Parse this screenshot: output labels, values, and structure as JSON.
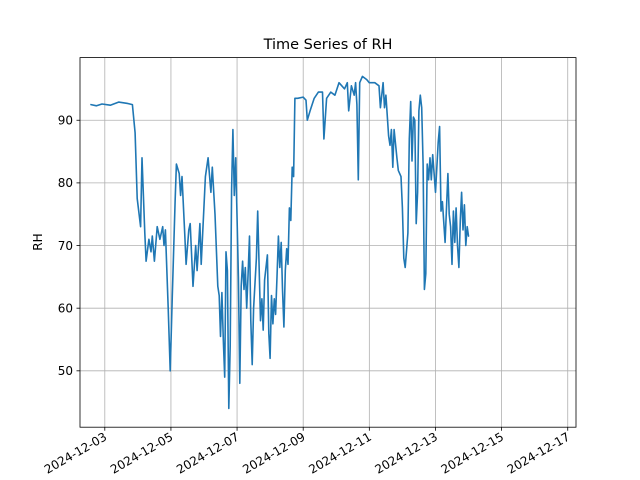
{
  "chart_data": {
    "type": "line",
    "title": "Time Series of RH",
    "xlabel": "",
    "ylabel": "RH",
    "grid": true,
    "line_color": "#1f77b4",
    "xlim": [
      "2024-12-02T06:00",
      "2024-12-17T06:00"
    ],
    "ylim": [
      41,
      100
    ],
    "x_ticks": [
      "2024-12-03",
      "2024-12-05",
      "2024-12-07",
      "2024-12-09",
      "2024-12-11",
      "2024-12-13",
      "2024-12-15",
      "2024-12-17"
    ],
    "y_ticks": [
      50,
      60,
      70,
      80,
      90
    ],
    "series": [
      {
        "name": "",
        "points": [
          [
            "2024-12-02T14:00",
            92.5
          ],
          [
            "2024-12-02T18:00",
            92.3
          ],
          [
            "2024-12-02T22:00",
            92.6
          ],
          [
            "2024-12-03T04:00",
            92.4
          ],
          [
            "2024-12-03T10:00",
            92.9
          ],
          [
            "2024-12-03T16:00",
            92.7
          ],
          [
            "2024-12-03T20:00",
            92.5
          ],
          [
            "2024-12-03T22:00",
            88.0
          ],
          [
            "2024-12-03T23:30",
            77.5
          ],
          [
            "2024-12-04T02:00",
            73.0
          ],
          [
            "2024-12-04T03:00",
            84.0
          ],
          [
            "2024-12-04T05:00",
            72.0
          ],
          [
            "2024-12-04T06:00",
            67.5
          ],
          [
            "2024-12-04T08:00",
            71.0
          ],
          [
            "2024-12-04T09:30",
            69.0
          ],
          [
            "2024-12-04T10:30",
            71.5
          ],
          [
            "2024-12-04T12:00",
            67.5
          ],
          [
            "2024-12-04T14:00",
            73.0
          ],
          [
            "2024-12-04T16:00",
            71.0
          ],
          [
            "2024-12-04T18:00",
            73.0
          ],
          [
            "2024-12-04T19:00",
            70.0
          ],
          [
            "2024-12-04T20:00",
            72.5
          ],
          [
            "2024-12-04T22:00",
            60.0
          ],
          [
            "2024-12-04T23:30",
            50.0
          ],
          [
            "2024-12-05T01:00",
            62.0
          ],
          [
            "2024-12-05T03:00",
            77.0
          ],
          [
            "2024-12-05T04:00",
            83.0
          ],
          [
            "2024-12-05T06:00",
            81.5
          ],
          [
            "2024-12-05T07:00",
            78.0
          ],
          [
            "2024-12-05T08:00",
            81.0
          ],
          [
            "2024-12-05T10:00",
            72.0
          ],
          [
            "2024-12-05T11:00",
            67.0
          ],
          [
            "2024-12-05T13:00",
            72.5
          ],
          [
            "2024-12-05T14:00",
            73.5
          ],
          [
            "2024-12-05T16:00",
            63.5
          ],
          [
            "2024-12-05T18:00",
            70.0
          ],
          [
            "2024-12-05T19:00",
            66.0
          ],
          [
            "2024-12-05T21:00",
            73.5
          ],
          [
            "2024-12-05T22:00",
            67.0
          ],
          [
            "2024-12-06T01:00",
            81.0
          ],
          [
            "2024-12-06T03:00",
            84.0
          ],
          [
            "2024-12-06T05:00",
            78.5
          ],
          [
            "2024-12-06T06:00",
            82.5
          ],
          [
            "2024-12-06T08:00",
            75.0
          ],
          [
            "2024-12-06T10:00",
            63.5
          ],
          [
            "2024-12-06T11:00",
            62.0
          ],
          [
            "2024-12-06T12:00",
            55.5
          ],
          [
            "2024-12-06T13:00",
            62.5
          ],
          [
            "2024-12-06T14:00",
            55.0
          ],
          [
            "2024-12-06T15:00",
            49.0
          ],
          [
            "2024-12-06T16:00",
            69.0
          ],
          [
            "2024-12-06T17:00",
            66.0
          ],
          [
            "2024-12-06T18:00",
            44.0
          ],
          [
            "2024-12-06T19:00",
            54.0
          ],
          [
            "2024-12-06T20:00",
            79.0
          ],
          [
            "2024-12-06T21:00",
            88.5
          ],
          [
            "2024-12-06T22:00",
            78.0
          ],
          [
            "2024-12-06T23:00",
            84.0
          ],
          [
            "2024-12-07T01:00",
            65.0
          ],
          [
            "2024-12-07T02:00",
            48.0
          ],
          [
            "2024-12-07T03:00",
            63.5
          ],
          [
            "2024-12-07T04:00",
            67.5
          ],
          [
            "2024-12-07T05:00",
            63.0
          ],
          [
            "2024-12-07T06:00",
            66.5
          ],
          [
            "2024-12-07T07:00",
            60.0
          ],
          [
            "2024-12-07T08:00",
            65.5
          ],
          [
            "2024-12-07T09:00",
            71.5
          ],
          [
            "2024-12-07T10:00",
            58.0
          ],
          [
            "2024-12-07T11:00",
            51.0
          ],
          [
            "2024-12-07T12:00",
            60.0
          ],
          [
            "2024-12-07T14:00",
            68.0
          ],
          [
            "2024-12-07T15:00",
            75.5
          ],
          [
            "2024-12-07T17:00",
            58.0
          ],
          [
            "2024-12-07T18:00",
            61.5
          ],
          [
            "2024-12-07T19:00",
            56.5
          ],
          [
            "2024-12-07T20:00",
            64.5
          ],
          [
            "2024-12-07T22:00",
            68.5
          ],
          [
            "2024-12-07T23:00",
            56.0
          ],
          [
            "2024-12-08T00:00",
            52.0
          ],
          [
            "2024-12-08T01:00",
            62.0
          ],
          [
            "2024-12-08T02:00",
            57.5
          ],
          [
            "2024-12-08T03:00",
            61.5
          ],
          [
            "2024-12-08T04:00",
            59.0
          ],
          [
            "2024-12-08T05:00",
            65.0
          ],
          [
            "2024-12-08T06:00",
            71.5
          ],
          [
            "2024-12-08T07:00",
            66.5
          ],
          [
            "2024-12-08T08:00",
            70.5
          ],
          [
            "2024-12-08T09:00",
            63.0
          ],
          [
            "2024-12-08T10:00",
            57.0
          ],
          [
            "2024-12-08T11:00",
            66.0
          ],
          [
            "2024-12-08T12:00",
            69.5
          ],
          [
            "2024-12-08T13:00",
            67.0
          ],
          [
            "2024-12-08T14:00",
            76.0
          ],
          [
            "2024-12-08T15:00",
            74.0
          ],
          [
            "2024-12-08T16:00",
            82.5
          ],
          [
            "2024-12-08T17:00",
            81.0
          ],
          [
            "2024-12-08T18:00",
            93.5
          ],
          [
            "2024-12-08T20:00",
            93.5
          ],
          [
            "2024-12-09T00:00",
            93.7
          ],
          [
            "2024-12-09T02:00",
            93.2
          ],
          [
            "2024-12-09T03:00",
            90.0
          ],
          [
            "2024-12-09T05:00",
            91.5
          ],
          [
            "2024-12-09T08:00",
            93.5
          ],
          [
            "2024-12-09T11:00",
            94.5
          ],
          [
            "2024-12-09T14:00",
            94.5
          ],
          [
            "2024-12-09T15:00",
            87.0
          ],
          [
            "2024-12-09T17:00",
            93.5
          ],
          [
            "2024-12-09T20:00",
            94.5
          ],
          [
            "2024-12-09T23:00",
            94.0
          ],
          [
            "2024-12-10T02:00",
            96.0
          ],
          [
            "2024-12-10T04:00",
            95.5
          ],
          [
            "2024-12-10T06:00",
            95.0
          ],
          [
            "2024-12-10T08:00",
            96.0
          ],
          [
            "2024-12-10T09:00",
            91.5
          ],
          [
            "2024-12-10T11:00",
            95.5
          ],
          [
            "2024-12-10T13:00",
            94.0
          ],
          [
            "2024-12-10T14:00",
            96.0
          ],
          [
            "2024-12-10T15:00",
            92.5
          ],
          [
            "2024-12-10T16:00",
            80.5
          ],
          [
            "2024-12-10T17:00",
            96.0
          ],
          [
            "2024-12-10T19:00",
            97.0
          ],
          [
            "2024-12-10T22:00",
            96.5
          ],
          [
            "2024-12-11T00:00",
            96.0
          ],
          [
            "2024-12-11T04:00",
            96.0
          ],
          [
            "2024-12-11T07:00",
            95.5
          ],
          [
            "2024-12-11T08:00",
            92.0
          ],
          [
            "2024-12-11T10:00",
            96.0
          ],
          [
            "2024-12-11T11:00",
            92.0
          ],
          [
            "2024-12-11T12:00",
            94.0
          ],
          [
            "2024-12-11T14:00",
            87.5
          ],
          [
            "2024-12-11T15:00",
            86.0
          ],
          [
            "2024-12-11T16:00",
            88.5
          ],
          [
            "2024-12-11T17:00",
            82.5
          ],
          [
            "2024-12-11T18:00",
            88.5
          ],
          [
            "2024-12-11T20:00",
            84.0
          ],
          [
            "2024-12-11T21:00",
            82.0
          ],
          [
            "2024-12-11T23:00",
            81.0
          ],
          [
            "2024-12-12T00:00",
            76.0
          ],
          [
            "2024-12-12T01:00",
            68.0
          ],
          [
            "2024-12-12T02:00",
            66.5
          ],
          [
            "2024-12-12T04:00",
            72.0
          ],
          [
            "2024-12-12T05:00",
            87.0
          ],
          [
            "2024-12-12T06:00",
            93.0
          ],
          [
            "2024-12-12T07:00",
            83.5
          ],
          [
            "2024-12-12T08:00",
            90.5
          ],
          [
            "2024-12-12T09:00",
            90.0
          ],
          [
            "2024-12-12T10:00",
            73.5
          ],
          [
            "2024-12-12T11:00",
            78.5
          ],
          [
            "2024-12-12T12:00",
            91.5
          ],
          [
            "2024-12-12T13:00",
            94.0
          ],
          [
            "2024-12-12T14:00",
            92.0
          ],
          [
            "2024-12-12T15:00",
            83.0
          ],
          [
            "2024-12-12T16:00",
            63.0
          ],
          [
            "2024-12-12T17:00",
            65.5
          ],
          [
            "2024-12-12T18:00",
            83.0
          ],
          [
            "2024-12-12T19:00",
            80.5
          ],
          [
            "2024-12-12T20:00",
            84.0
          ],
          [
            "2024-12-12T21:00",
            80.5
          ],
          [
            "2024-12-12T22:00",
            84.5
          ],
          [
            "2024-12-13T00:00",
            78.5
          ],
          [
            "2024-12-13T02:00",
            86.5
          ],
          [
            "2024-12-13T03:00",
            89.0
          ],
          [
            "2024-12-13T04:00",
            75.5
          ],
          [
            "2024-12-13T05:00",
            77.0
          ],
          [
            "2024-12-13T07:00",
            70.5
          ],
          [
            "2024-12-13T09:00",
            81.5
          ],
          [
            "2024-12-13T10:00",
            75.0
          ],
          [
            "2024-12-13T11:00",
            73.0
          ],
          [
            "2024-12-13T12:00",
            67.0
          ],
          [
            "2024-12-13T13:00",
            75.5
          ],
          [
            "2024-12-13T14:00",
            70.5
          ],
          [
            "2024-12-13T15:00",
            76.0
          ],
          [
            "2024-12-13T16:00",
            70.0
          ],
          [
            "2024-12-13T17:00",
            66.5
          ],
          [
            "2024-12-13T18:00",
            74.0
          ],
          [
            "2024-12-13T19:00",
            78.5
          ],
          [
            "2024-12-13T20:00",
            72.5
          ],
          [
            "2024-12-13T21:00",
            76.5
          ],
          [
            "2024-12-13T22:00",
            70.0
          ],
          [
            "2024-12-13T23:00",
            73.0
          ],
          [
            "2024-12-14T00:00",
            71.5
          ]
        ]
      }
    ]
  }
}
